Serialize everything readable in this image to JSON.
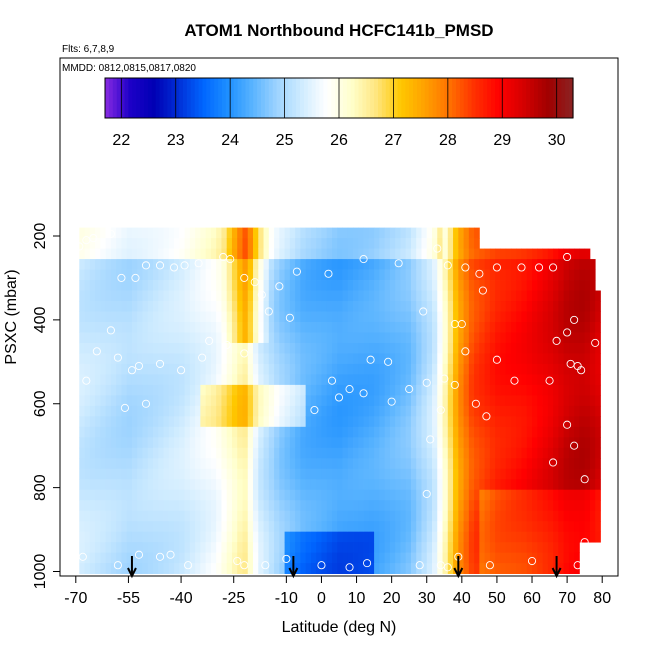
{
  "chart_data": {
    "type": "heatmap",
    "title": "ATOM1 Northbound HCFC141b_PMSD",
    "subtitle_flights": "Flts: 6,7,8,9",
    "subtitle_dates": "MMDD: 0812,0815,0817,0820",
    "xlabel": "Latitude (deg N)",
    "ylabel": "PSXC (mbar)",
    "xlim": [
      -70,
      80
    ],
    "ylim": [
      1000,
      0
    ],
    "x_ticks": [
      -70,
      -55,
      -40,
      -25,
      -10,
      0,
      10,
      20,
      30,
      40,
      50,
      60,
      70,
      80
    ],
    "y_ticks": [
      200,
      400,
      600,
      800,
      1000
    ],
    "colorbar": {
      "range": [
        21.7,
        30.3
      ],
      "ticks": [
        22,
        23,
        24,
        25,
        26,
        27,
        28,
        29,
        30
      ],
      "colors": [
        "#8a2be2",
        "#1e00c8",
        "#0000b4",
        "#0030d8",
        "#0066ff",
        "#1e90ff",
        "#5ab4ff",
        "#9fd4ff",
        "#d0ecff",
        "#ffffff",
        "#ffffcc",
        "#ffe680",
        "#ffc800",
        "#ffa000",
        "#ff7000",
        "#ff3000",
        "#ff0000",
        "#d40000",
        "#a00000",
        "#8b2323"
      ]
    },
    "profile_arrows_lat": [
      -54,
      -8,
      39,
      67
    ],
    "profile_points": [
      {
        "lat": -69,
        "p": 225
      },
      {
        "lat": -67,
        "p": 210
      },
      {
        "lat": -65,
        "p": 205
      },
      {
        "lat": -60,
        "p": 195
      },
      {
        "lat": -57,
        "p": 300
      },
      {
        "lat": -53,
        "p": 300
      },
      {
        "lat": -50,
        "p": 270
      },
      {
        "lat": -46,
        "p": 270
      },
      {
        "lat": -42,
        "p": 275
      },
      {
        "lat": -39,
        "p": 270
      },
      {
        "lat": -35,
        "p": 265
      },
      {
        "lat": -28,
        "p": 250
      },
      {
        "lat": -26,
        "p": 255
      },
      {
        "lat": -22,
        "p": 300
      },
      {
        "lat": -19,
        "p": 310
      },
      {
        "lat": -17,
        "p": 340
      },
      {
        "lat": -15,
        "p": 380
      },
      {
        "lat": -12,
        "p": 320
      },
      {
        "lat": -9,
        "p": 395
      },
      {
        "lat": -7,
        "p": 285
      },
      {
        "lat": 2,
        "p": 290
      },
      {
        "lat": 12,
        "p": 255
      },
      {
        "lat": 22,
        "p": 265
      },
      {
        "lat": 29,
        "p": 380
      },
      {
        "lat": 33,
        "p": 230
      },
      {
        "lat": 36,
        "p": 270
      },
      {
        "lat": 38,
        "p": 410
      },
      {
        "lat": 40,
        "p": 410
      },
      {
        "lat": 41,
        "p": 275
      },
      {
        "lat": 45,
        "p": 290
      },
      {
        "lat": 46,
        "p": 330
      },
      {
        "lat": 50,
        "p": 275
      },
      {
        "lat": 57,
        "p": 275
      },
      {
        "lat": 62,
        "p": 275
      },
      {
        "lat": 66,
        "p": 275
      },
      {
        "lat": 70,
        "p": 250
      },
      {
        "lat": 72,
        "p": 400
      },
      {
        "lat": 76,
        "p": 190
      },
      {
        "lat": -64,
        "p": 475
      },
      {
        "lat": -60,
        "p": 425
      },
      {
        "lat": -58,
        "p": 490
      },
      {
        "lat": -54,
        "p": 520
      },
      {
        "lat": -52,
        "p": 510
      },
      {
        "lat": -46,
        "p": 505
      },
      {
        "lat": -40,
        "p": 520
      },
      {
        "lat": -34,
        "p": 490
      },
      {
        "lat": -32,
        "p": 450
      },
      {
        "lat": -27,
        "p": 460
      },
      {
        "lat": -22,
        "p": 480
      },
      {
        "lat": 3,
        "p": 545
      },
      {
        "lat": 5,
        "p": 585
      },
      {
        "lat": 8,
        "p": 565
      },
      {
        "lat": 12,
        "p": 575
      },
      {
        "lat": 14,
        "p": 495
      },
      {
        "lat": 19,
        "p": 500
      },
      {
        "lat": 25,
        "p": 565
      },
      {
        "lat": 30,
        "p": 550
      },
      {
        "lat": 35,
        "p": 540
      },
      {
        "lat": 38,
        "p": 555
      },
      {
        "lat": 41,
        "p": 475
      },
      {
        "lat": 44,
        "p": 600
      },
      {
        "lat": 50,
        "p": 495
      },
      {
        "lat": 55,
        "p": 545
      },
      {
        "lat": 65,
        "p": 545
      },
      {
        "lat": 67,
        "p": 450
      },
      {
        "lat": 70,
        "p": 430
      },
      {
        "lat": 71,
        "p": 505
      },
      {
        "lat": 73,
        "p": 510
      },
      {
        "lat": 74,
        "p": 520
      },
      {
        "lat": 78,
        "p": 455
      },
      {
        "lat": -67,
        "p": 545
      },
      {
        "lat": -56,
        "p": 610
      },
      {
        "lat": -50,
        "p": 600
      },
      {
        "lat": -2,
        "p": 615
      },
      {
        "lat": 20,
        "p": 595
      },
      {
        "lat": 34,
        "p": 615
      },
      {
        "lat": 47,
        "p": 630
      },
      {
        "lat": 66,
        "p": 740
      },
      {
        "lat": 70,
        "p": 650
      },
      {
        "lat": 72,
        "p": 700
      },
      {
        "lat": 75,
        "p": 780
      },
      {
        "lat": 31,
        "p": 685
      },
      {
        "lat": 30,
        "p": 815
      },
      {
        "lat": 75,
        "p": 930
      },
      {
        "lat": -68,
        "p": 965
      },
      {
        "lat": -58,
        "p": 985
      },
      {
        "lat": -52,
        "p": 960
      },
      {
        "lat": -46,
        "p": 965
      },
      {
        "lat": -43,
        "p": 960
      },
      {
        "lat": -38,
        "p": 985
      },
      {
        "lat": -24,
        "p": 975
      },
      {
        "lat": -22,
        "p": 985
      },
      {
        "lat": -16,
        "p": 985
      },
      {
        "lat": -10,
        "p": 970
      },
      {
        "lat": 0,
        "p": 985
      },
      {
        "lat": 8,
        "p": 990
      },
      {
        "lat": 13,
        "p": 980
      },
      {
        "lat": 28,
        "p": 985
      },
      {
        "lat": 34,
        "p": 985
      },
      {
        "lat": 36,
        "p": 990
      },
      {
        "lat": 39,
        "p": 965
      },
      {
        "lat": 48,
        "p": 985
      },
      {
        "lat": 60,
        "p": 975
      },
      {
        "lat": 73,
        "p": 985
      }
    ]
  }
}
